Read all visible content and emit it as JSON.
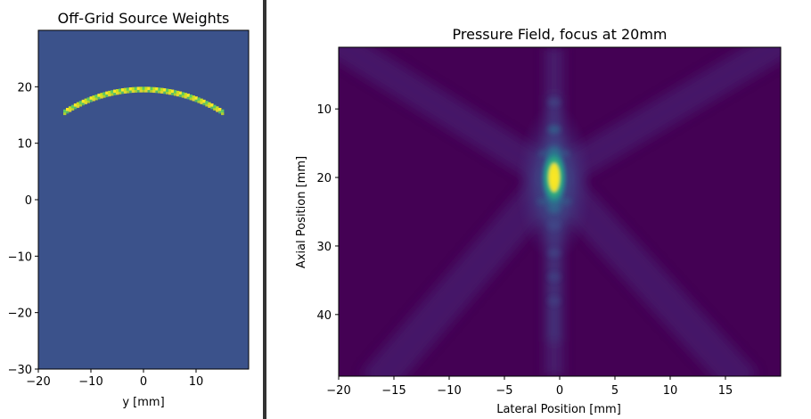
{
  "chart_data": [
    {
      "type": "heatmap",
      "title": "Off-Grid Source Weights",
      "xlabel": "y [mm]",
      "ylabel": "",
      "xlim": [
        -20,
        20
      ],
      "ylim": [
        -30,
        30
      ],
      "x_ticks": [
        -20,
        -10,
        0,
        10
      ],
      "y_ticks": [
        -30,
        -20,
        -10,
        0,
        10,
        20
      ],
      "x_tick_labels": [
        "−20",
        "−10",
        "0",
        "10"
      ],
      "y_tick_labels": [
        "−30",
        "−20",
        "−10",
        "0",
        "10",
        "20"
      ],
      "background_color": "#3b528b",
      "arc": {
        "center": [
          0,
          -10.5
        ],
        "radius": 30,
        "from_x": -15,
        "to_x": 15,
        "peak_y": 19.5,
        "end_y": 13
      },
      "arc_colors": [
        "#5ec962",
        "#c8e020",
        "#fde725"
      ]
    },
    {
      "type": "heatmap",
      "title": "Pressure Field, focus at 20mm",
      "xlabel": "Lateral Position [mm]",
      "ylabel": "Axial Position [mm]",
      "xlim": [
        -20,
        20
      ],
      "ylim": [
        49,
        1
      ],
      "x_ticks": [
        -20,
        -15,
        -10,
        -5,
        0,
        5,
        10,
        15
      ],
      "y_ticks": [
        10,
        20,
        30,
        40
      ],
      "x_tick_labels": [
        "−20",
        "−15",
        "−10",
        "−5",
        "0",
        "5",
        "10",
        "15"
      ],
      "y_tick_labels": [
        "10",
        "20",
        "30",
        "40"
      ],
      "focus": [
        -0.5,
        20
      ],
      "background_color": "#440154",
      "colormap": [
        "#440154",
        "#482878",
        "#3e4a89",
        "#31688e",
        "#26828e",
        "#1f9e89",
        "#35b779",
        "#6ece58",
        "#b5de2b",
        "#fde725"
      ]
    }
  ]
}
